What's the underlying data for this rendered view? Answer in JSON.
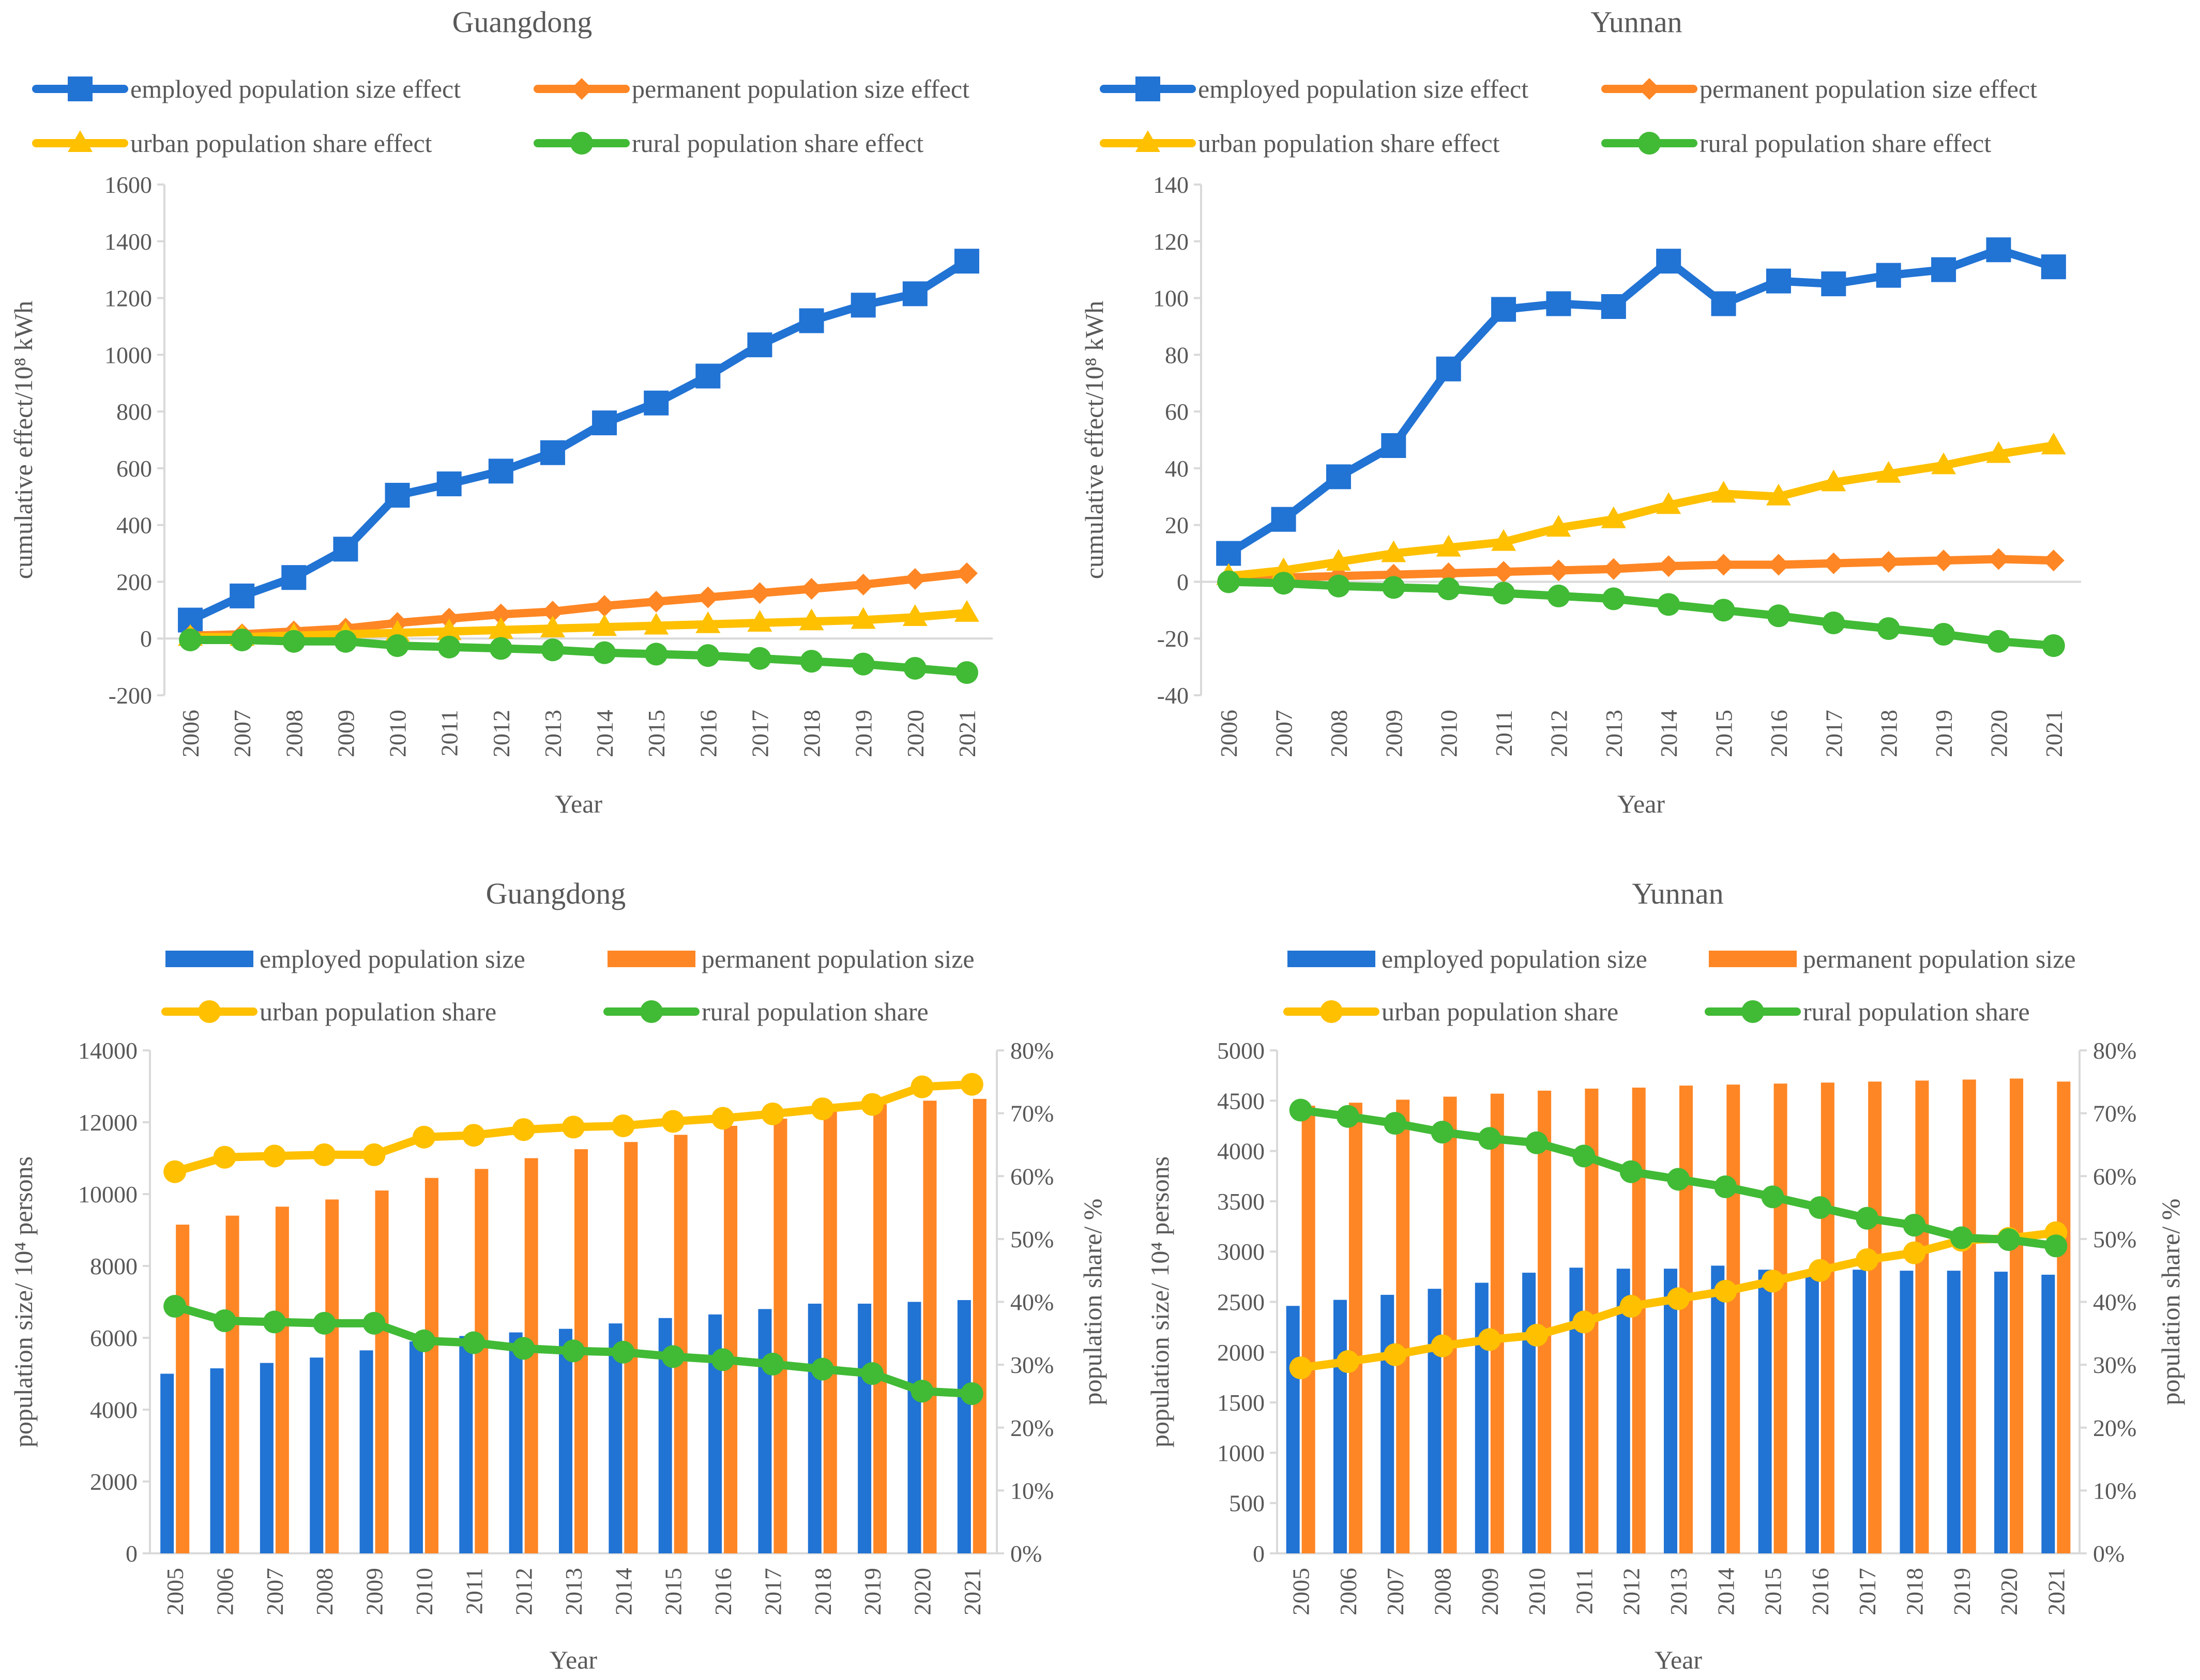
{
  "colors": {
    "employed": "#2173D4",
    "permanent": "#FF8624",
    "urban": "#FFC000",
    "rural": "#41BA36",
    "axis": "#D9D9D9",
    "text": "#595959"
  },
  "chart_data": [
    {
      "type": "line",
      "title": "Guangdong",
      "xlabel": "Year",
      "ylabel": "cumulative effect/10⁸ kWh",
      "ylim": [
        -200,
        1600
      ],
      "yticks": [
        -200,
        0,
        200,
        400,
        600,
        800,
        1000,
        1200,
        1400,
        1600
      ],
      "categories": [
        "2006",
        "2007",
        "2008",
        "2009",
        "2010",
        "2011",
        "2012",
        "2013",
        "2014",
        "2015",
        "2016",
        "2017",
        "2018",
        "2019",
        "2020",
        "2021"
      ],
      "series": [
        {
          "name": "employed population size effect",
          "key": "employed",
          "marker": "square",
          "values": [
            65,
            150,
            215,
            315,
            505,
            545,
            590,
            655,
            760,
            830,
            925,
            1035,
            1120,
            1175,
            1215,
            1330
          ]
        },
        {
          "name": "permanent population size effect",
          "key": "permanent",
          "marker": "diamond",
          "values": [
            10,
            15,
            25,
            35,
            55,
            70,
            85,
            95,
            115,
            130,
            145,
            160,
            175,
            190,
            210,
            230
          ]
        },
        {
          "name": "urban population share effect",
          "key": "urban",
          "marker": "triangle",
          "values": [
            5,
            5,
            10,
            15,
            20,
            25,
            30,
            35,
            40,
            45,
            50,
            55,
            60,
            65,
            75,
            90
          ]
        },
        {
          "name": "rural population share effect",
          "key": "rural",
          "marker": "circle",
          "values": [
            -5,
            -5,
            -10,
            -10,
            -25,
            -30,
            -35,
            -40,
            -50,
            -55,
            -60,
            -70,
            -80,
            -90,
            -105,
            -120
          ]
        }
      ]
    },
    {
      "type": "line",
      "title": "Yunnan",
      "xlabel": "Year",
      "ylabel": "cumulative effect/10⁸ kWh",
      "ylim": [
        -40,
        140
      ],
      "yticks": [
        -40,
        -20,
        0,
        20,
        40,
        60,
        80,
        100,
        120,
        140
      ],
      "categories": [
        "2006",
        "2007",
        "2008",
        "2009",
        "2010",
        "2011",
        "2012",
        "2013",
        "2014",
        "2015",
        "2016",
        "2017",
        "2018",
        "2019",
        "2020",
        "2021"
      ],
      "series": [
        {
          "name": "employed population size effect",
          "key": "employed",
          "marker": "square",
          "values": [
            10,
            22,
            37,
            48,
            75,
            96,
            98,
            97,
            113,
            98,
            106,
            105,
            108,
            110,
            117,
            111
          ]
        },
        {
          "name": "permanent population size effect",
          "key": "permanent",
          "marker": "diamond",
          "values": [
            1,
            1.5,
            2,
            2.5,
            3,
            3.5,
            4,
            4.5,
            5.5,
            6,
            6,
            6.5,
            7,
            7.5,
            8,
            7.5
          ]
        },
        {
          "name": "urban population share effect",
          "key": "urban",
          "marker": "triangle",
          "values": [
            2,
            4,
            7,
            10,
            12,
            14,
            19,
            22,
            27,
            31,
            30,
            35,
            38,
            41,
            45,
            48
          ]
        },
        {
          "name": "rural population share effect",
          "key": "rural",
          "marker": "circle",
          "values": [
            0,
            -0.5,
            -1.5,
            -2,
            -2.5,
            -4,
            -5,
            -6,
            -8,
            -10,
            -12,
            -14.5,
            -16.5,
            -18.5,
            -21,
            -22.5
          ]
        }
      ]
    },
    {
      "type": "bar+line",
      "title": "Guangdong",
      "xlabel": "Year",
      "ylabel": "population size/ 10⁴ persons",
      "y2label": "population share/ %",
      "ylim": [
        0,
        14000
      ],
      "yticks": [
        0,
        2000,
        4000,
        6000,
        8000,
        10000,
        12000,
        14000
      ],
      "y2lim": [
        0,
        80
      ],
      "y2ticks": [
        "0%",
        "10%",
        "20%",
        "30%",
        "40%",
        "50%",
        "60%",
        "70%",
        "80%"
      ],
      "categories": [
        "2005",
        "2006",
        "2007",
        "2008",
        "2009",
        "2010",
        "2011",
        "2012",
        "2013",
        "2014",
        "2015",
        "2016",
        "2017",
        "2018",
        "2019",
        "2020",
        "2021"
      ],
      "bars": [
        {
          "name": "employed population size",
          "key": "employed",
          "values": [
            5000,
            5150,
            5300,
            5450,
            5650,
            5900,
            6050,
            6150,
            6250,
            6400,
            6550,
            6650,
            6800,
            6950,
            6950,
            7000,
            7050
          ]
        },
        {
          "name": "permanent population size",
          "key": "permanent",
          "values": [
            9150,
            9400,
            9650,
            9850,
            10100,
            10450,
            10700,
            11000,
            11250,
            11450,
            11650,
            11900,
            12100,
            12350,
            12500,
            12600,
            12650
          ]
        }
      ],
      "lines": [
        {
          "name": "urban population share",
          "key": "urban",
          "values": [
            60.7,
            63.0,
            63.2,
            63.4,
            63.4,
            66.2,
            66.5,
            67.4,
            67.8,
            68.0,
            68.7,
            69.2,
            69.9,
            70.7,
            71.4,
            74.2,
            74.6
          ]
        },
        {
          "name": "rural population share",
          "key": "rural",
          "values": [
            39.3,
            37.0,
            36.8,
            36.6,
            36.6,
            33.8,
            33.5,
            32.6,
            32.2,
            32.0,
            31.3,
            30.8,
            30.1,
            29.3,
            28.6,
            25.8,
            25.4
          ]
        }
      ]
    },
    {
      "type": "bar+line",
      "title": "Yunnan",
      "xlabel": "Year",
      "ylabel": "population size/ 10⁴ persons",
      "y2label": "population share/ %",
      "ylim": [
        0,
        5000
      ],
      "yticks": [
        0,
        500,
        1000,
        1500,
        2000,
        2500,
        3000,
        3500,
        4000,
        4500,
        5000
      ],
      "y2lim": [
        0,
        80
      ],
      "y2ticks": [
        "0%",
        "10%",
        "20%",
        "30%",
        "40%",
        "50%",
        "60%",
        "70%",
        "80%"
      ],
      "categories": [
        "2005",
        "2006",
        "2007",
        "2008",
        "2009",
        "2010",
        "2011",
        "2012",
        "2013",
        "2014",
        "2015",
        "2016",
        "2017",
        "2018",
        "2019",
        "2020",
        "2021"
      ],
      "bars": [
        {
          "name": "employed population size",
          "key": "employed",
          "values": [
            2460,
            2520,
            2570,
            2630,
            2690,
            2790,
            2840,
            2830,
            2830,
            2860,
            2820,
            2790,
            2820,
            2810,
            2810,
            2800,
            2770
          ]
        },
        {
          "name": "permanent population size",
          "key": "permanent",
          "values": [
            4450,
            4480,
            4510,
            4540,
            4570,
            4600,
            4620,
            4630,
            4650,
            4660,
            4670,
            4680,
            4690,
            4700,
            4710,
            4720,
            4690
          ]
        }
      ],
      "lines": [
        {
          "name": "urban population share",
          "key": "urban",
          "values": [
            29.5,
            30.5,
            31.6,
            33.0,
            34.0,
            34.7,
            36.8,
            39.3,
            40.5,
            41.7,
            43.3,
            45.0,
            46.7,
            47.8,
            49.8,
            50.1,
            51.0
          ]
        },
        {
          "name": "rural population share",
          "key": "rural",
          "values": [
            70.5,
            69.5,
            68.4,
            67.0,
            66.0,
            65.3,
            63.2,
            60.7,
            59.5,
            58.3,
            56.7,
            55.0,
            53.3,
            52.2,
            50.2,
            49.9,
            48.9
          ]
        }
      ]
    }
  ]
}
